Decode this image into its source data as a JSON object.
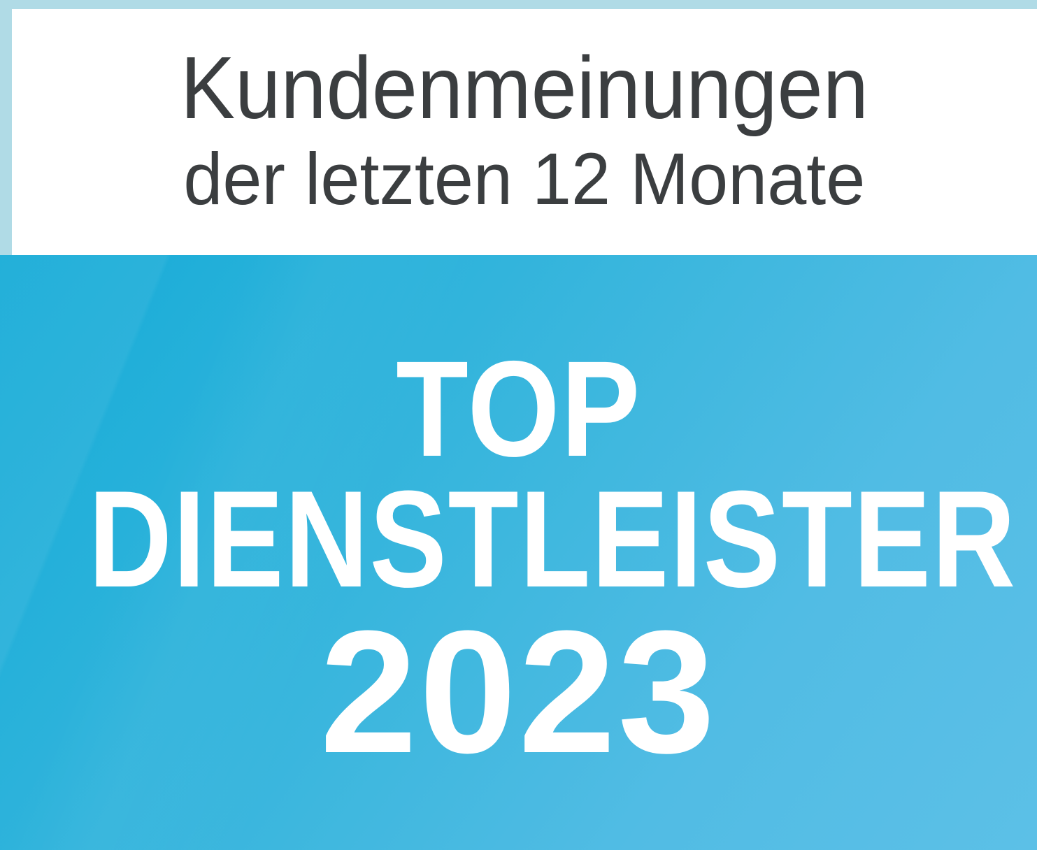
{
  "badge": {
    "border_color": "#b0dbe6",
    "header": {
      "title": "Kundenmeinungen",
      "subtitle": "der letzten 12 Monate",
      "text_color": "#3b3e40",
      "background_color": "#ffffff"
    },
    "award": {
      "line1": "TOP",
      "line2": "DIENSTLEISTER",
      "year": "2023",
      "text_color": "#ffffff",
      "gradient_start": "#16abd7",
      "gradient_end": "#5cc0e7"
    }
  }
}
